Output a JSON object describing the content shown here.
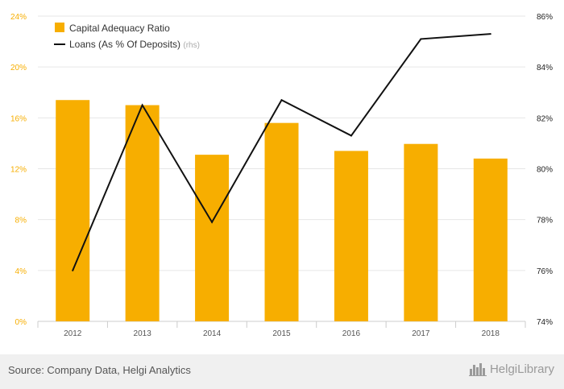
{
  "colors": {
    "bar": "#F7AE00",
    "line": "#111111",
    "axis_left": "#F7AE00",
    "axis_right": "#222222",
    "grid": "#e6e6e6",
    "axis_category": "#555555"
  },
  "footer": {
    "source": "Source: Company Data, Helgi Analytics",
    "brand": "HelgiLibrary",
    "brand_icon": "city-skyline-icon"
  },
  "chart_data": {
    "type": "bar",
    "categories": [
      "2012",
      "2013",
      "2014",
      "2015",
      "2016",
      "2017",
      "2018"
    ],
    "series": [
      {
        "name": "Capital Adequacy Ratio",
        "type": "bar",
        "axis": "left",
        "values": [
          17.4,
          17.0,
          13.1,
          15.6,
          13.4,
          13.95,
          12.8
        ]
      },
      {
        "name": "Loans (As % Of Deposits)",
        "suffix": "(rhs)",
        "type": "line",
        "axis": "right",
        "values": [
          76.0,
          82.5,
          77.9,
          82.7,
          81.3,
          85.1,
          85.3
        ]
      }
    ],
    "y_left": {
      "min": 0,
      "max": 24,
      "ticks": [
        "0%",
        "4%",
        "8%",
        "12%",
        "16%",
        "20%",
        "24%"
      ],
      "tick_values": [
        0,
        4,
        8,
        12,
        16,
        20,
        24
      ]
    },
    "y_right": {
      "min": 74,
      "max": 86,
      "ticks": [
        "74%",
        "76%",
        "78%",
        "80%",
        "82%",
        "84%",
        "86%"
      ],
      "tick_values": [
        74,
        76,
        78,
        80,
        82,
        84,
        86
      ]
    },
    "grid": true,
    "legend_position": "top-left"
  }
}
